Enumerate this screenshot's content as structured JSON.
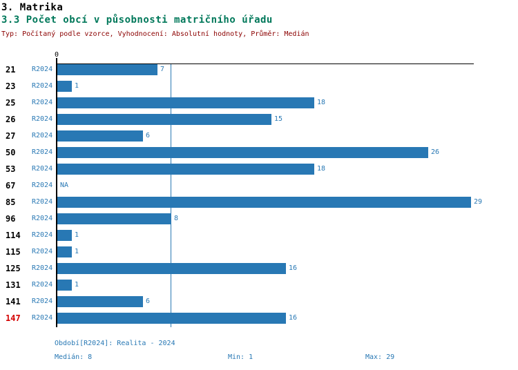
{
  "title": "3. Matrika",
  "subtitle": "3.3 Počet obcí v působnosti matričního úřadu",
  "meta_line": "Typ: Počítaný podle vzorce, Vyhodnocení: Absolutní hodnoty, Průměr: Medián",
  "chart_data": {
    "type": "bar",
    "orientation": "horizontal",
    "title": "3.3 Počet obcí v působnosti matričního úřadu",
    "series_label": "R2024",
    "categories": [
      "21",
      "23",
      "25",
      "26",
      "27",
      "50",
      "53",
      "67",
      "85",
      "96",
      "114",
      "115",
      "125",
      "131",
      "141",
      "147"
    ],
    "values": [
      7,
      1,
      18,
      15,
      6,
      26,
      18,
      null,
      29,
      8,
      1,
      1,
      16,
      1,
      6,
      16
    ],
    "na_label": "NA",
    "axis_zero_label": "0",
    "xlim": [
      0,
      29
    ],
    "median_value": 8,
    "median_line": true,
    "grid": false,
    "highlight_category": "147",
    "bar_color": "#2878b4",
    "label_color": "#2878b4",
    "median_line_color": "#2878b4",
    "highlight_color": "#d40000"
  },
  "footer": {
    "period_label": "Období[R2024]: Realita - 2024",
    "median_label": "Medián: 8",
    "min_label": "Min: 1",
    "max_label": "Max: 29"
  },
  "colors": {
    "title": "#000000",
    "subtitle": "#00785a",
    "meta_line": "#8b0000",
    "accent_blue": "#2878b4",
    "highlight_red": "#d40000"
  }
}
